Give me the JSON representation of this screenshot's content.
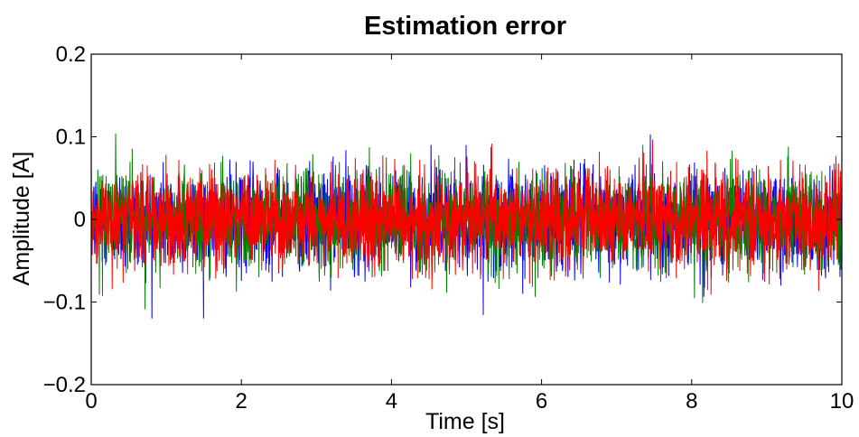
{
  "chart_data": {
    "type": "line",
    "title": "Estimation error",
    "xlabel": "Time [s]",
    "ylabel": "Amplitude [A]",
    "xlim": [
      0,
      10
    ],
    "ylim": [
      -0.2,
      0.2
    ],
    "x_ticks": [
      0,
      2,
      4,
      6,
      8,
      10
    ],
    "x_tick_labels": [
      "0",
      "2",
      "4",
      "6",
      "8",
      "10"
    ],
    "y_ticks": [
      -0.2,
      -0.1,
      0,
      0.1,
      0.2
    ],
    "y_tick_labels": [
      "−0.2",
      "−0.1",
      "0",
      "0.1",
      "0.2"
    ],
    "grid": false,
    "legend": "none",
    "series": [
      {
        "color": "#0000ff",
        "x_range": [
          0,
          10
        ],
        "values_note": "",
        "mean": 0,
        "peak": 0.12,
        "std": 0.03
      },
      {
        "color": "#007f00",
        "x_range": [
          0,
          10
        ],
        "values_note": "",
        "mean": 0,
        "peak": 0.11,
        "std": 0.03
      },
      {
        "color": "#ff0000",
        "x_range": [
          0,
          10
        ],
        "values_note": "",
        "mean": 0,
        "peak": 0.13,
        "std": 0.03
      }
    ]
  }
}
